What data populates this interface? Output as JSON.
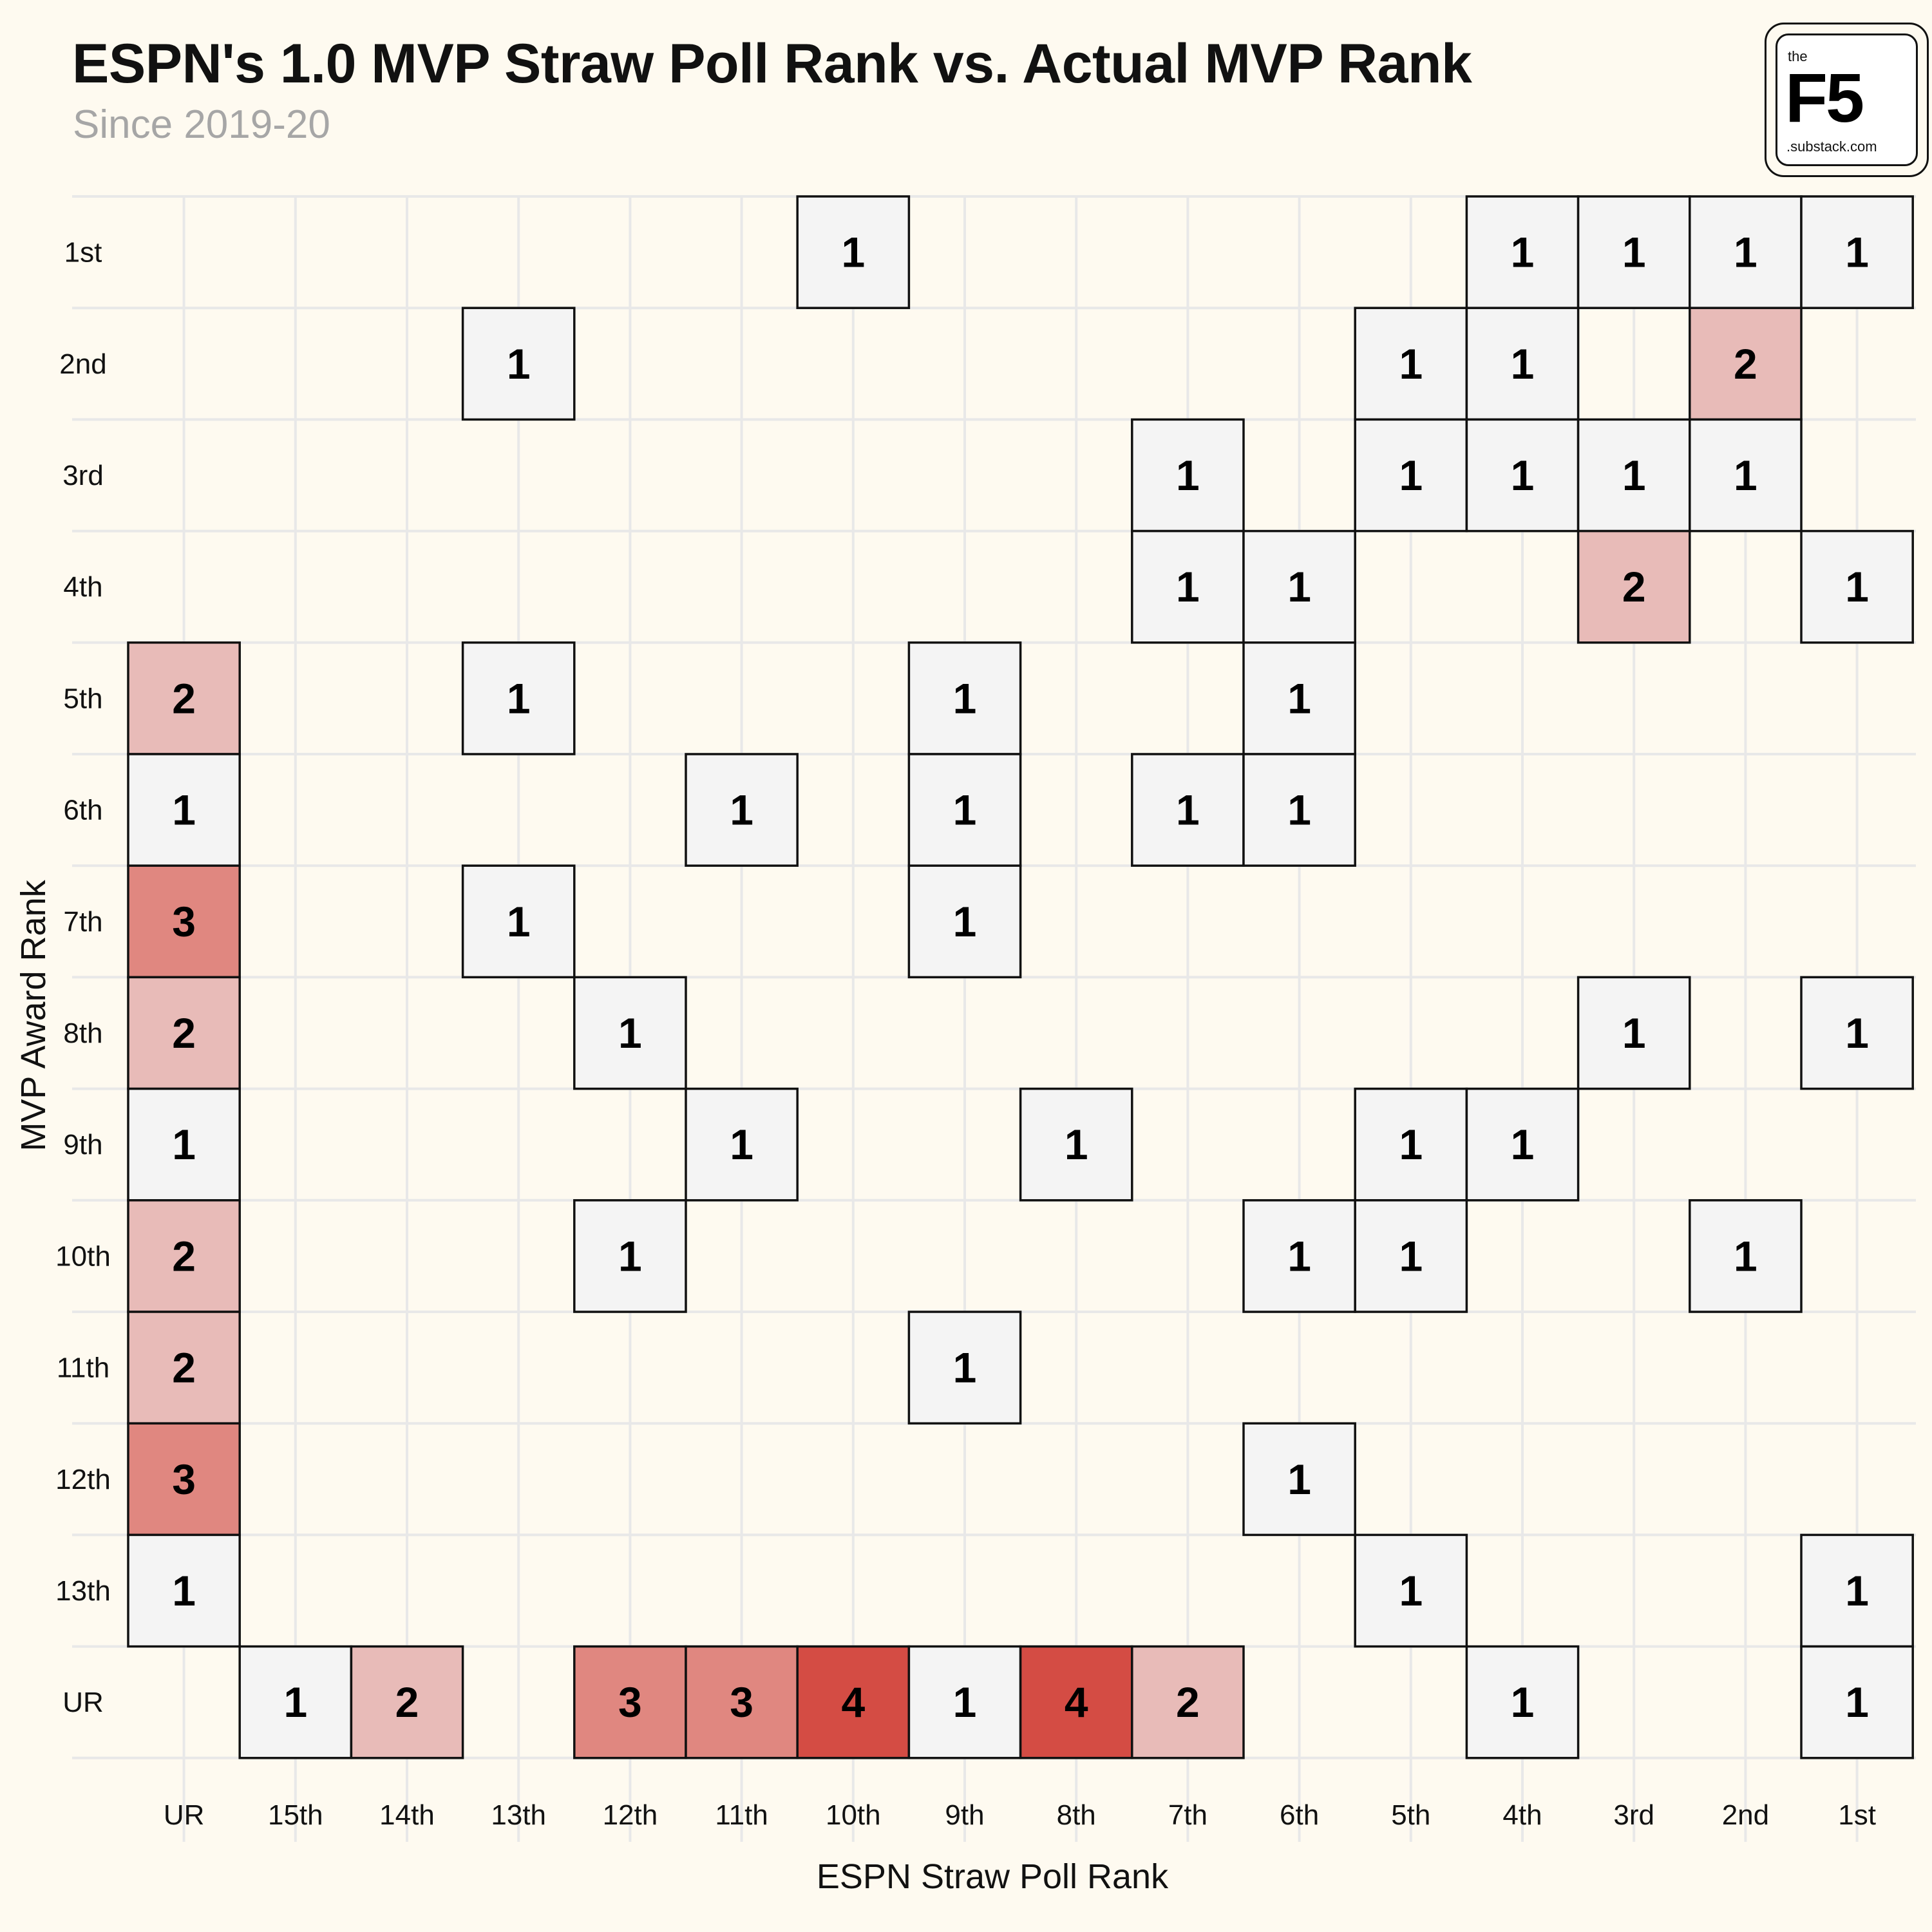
{
  "header": {
    "title": "ESPN's 1.0 MVP Straw Poll Rank vs. Actual MVP Rank",
    "subtitle": "Since 2019-20"
  },
  "logo": {
    "the": "the",
    "mark": "F5",
    "suffix": ".substack.com"
  },
  "colors": {
    "background": "#fefaf0",
    "grid": "#e8e8e8",
    "count_1": "#f4f4f4",
    "count_2": "#e8bbb8",
    "count_3": "#e08780",
    "count_4": "#d44c44",
    "border": "#111111"
  },
  "chart_data": {
    "type": "heatmap",
    "title": "ESPN's 1.0 MVP Straw Poll Rank vs. Actual MVP Rank",
    "subtitle": "Since 2019-20",
    "xlabel": "ESPN Straw Poll Rank",
    "ylabel": "MVP Award Rank",
    "x_categories": [
      "UR",
      "15th",
      "14th",
      "13th",
      "12th",
      "11th",
      "10th",
      "9th",
      "8th",
      "7th",
      "6th",
      "5th",
      "4th",
      "3rd",
      "2nd",
      "1st"
    ],
    "y_categories": [
      "1st",
      "2nd",
      "3rd",
      "4th",
      "5th",
      "6th",
      "7th",
      "8th",
      "9th",
      "10th",
      "11th",
      "12th",
      "13th",
      "UR"
    ],
    "cells": [
      {
        "x": "10th",
        "y": "1st",
        "value": 1
      },
      {
        "x": "4th",
        "y": "1st",
        "value": 1
      },
      {
        "x": "3rd",
        "y": "1st",
        "value": 1
      },
      {
        "x": "2nd",
        "y": "1st",
        "value": 1
      },
      {
        "x": "1st",
        "y": "1st",
        "value": 1
      },
      {
        "x": "13th",
        "y": "2nd",
        "value": 1
      },
      {
        "x": "5th",
        "y": "2nd",
        "value": 1
      },
      {
        "x": "4th",
        "y": "2nd",
        "value": 1
      },
      {
        "x": "2nd",
        "y": "2nd",
        "value": 2
      },
      {
        "x": "7th",
        "y": "3rd",
        "value": 1
      },
      {
        "x": "5th",
        "y": "3rd",
        "value": 1
      },
      {
        "x": "4th",
        "y": "3rd",
        "value": 1
      },
      {
        "x": "3rd",
        "y": "3rd",
        "value": 1
      },
      {
        "x": "2nd",
        "y": "3rd",
        "value": 1
      },
      {
        "x": "7th",
        "y": "4th",
        "value": 1
      },
      {
        "x": "6th",
        "y": "4th",
        "value": 1
      },
      {
        "x": "3rd",
        "y": "4th",
        "value": 2
      },
      {
        "x": "1st",
        "y": "4th",
        "value": 1
      },
      {
        "x": "UR",
        "y": "5th",
        "value": 2
      },
      {
        "x": "13th",
        "y": "5th",
        "value": 1
      },
      {
        "x": "9th",
        "y": "5th",
        "value": 1
      },
      {
        "x": "6th",
        "y": "5th",
        "value": 1
      },
      {
        "x": "UR",
        "y": "6th",
        "value": 1
      },
      {
        "x": "11th",
        "y": "6th",
        "value": 1
      },
      {
        "x": "9th",
        "y": "6th",
        "value": 1
      },
      {
        "x": "7th",
        "y": "6th",
        "value": 1
      },
      {
        "x": "6th",
        "y": "6th",
        "value": 1
      },
      {
        "x": "UR",
        "y": "7th",
        "value": 3
      },
      {
        "x": "13th",
        "y": "7th",
        "value": 1
      },
      {
        "x": "9th",
        "y": "7th",
        "value": 1
      },
      {
        "x": "UR",
        "y": "8th",
        "value": 2
      },
      {
        "x": "12th",
        "y": "8th",
        "value": 1
      },
      {
        "x": "3rd",
        "y": "8th",
        "value": 1
      },
      {
        "x": "1st",
        "y": "8th",
        "value": 1
      },
      {
        "x": "UR",
        "y": "9th",
        "value": 1
      },
      {
        "x": "11th",
        "y": "9th",
        "value": 1
      },
      {
        "x": "8th",
        "y": "9th",
        "value": 1
      },
      {
        "x": "5th",
        "y": "9th",
        "value": 1
      },
      {
        "x": "4th",
        "y": "9th",
        "value": 1
      },
      {
        "x": "UR",
        "y": "10th",
        "value": 2
      },
      {
        "x": "12th",
        "y": "10th",
        "value": 1
      },
      {
        "x": "6th",
        "y": "10th",
        "value": 1
      },
      {
        "x": "5th",
        "y": "10th",
        "value": 1
      },
      {
        "x": "2nd",
        "y": "10th",
        "value": 1
      },
      {
        "x": "UR",
        "y": "11th",
        "value": 2
      },
      {
        "x": "9th",
        "y": "11th",
        "value": 1
      },
      {
        "x": "UR",
        "y": "12th",
        "value": 3
      },
      {
        "x": "6th",
        "y": "12th",
        "value": 1
      },
      {
        "x": "UR",
        "y": "13th",
        "value": 1
      },
      {
        "x": "5th",
        "y": "13th",
        "value": 1
      },
      {
        "x": "1st",
        "y": "13th",
        "value": 1
      },
      {
        "x": "15th",
        "y": "UR",
        "value": 1
      },
      {
        "x": "14th",
        "y": "UR",
        "value": 2
      },
      {
        "x": "12th",
        "y": "UR",
        "value": 3
      },
      {
        "x": "11th",
        "y": "UR",
        "value": 3
      },
      {
        "x": "10th",
        "y": "UR",
        "value": 4
      },
      {
        "x": "9th",
        "y": "UR",
        "value": 1
      },
      {
        "x": "8th",
        "y": "UR",
        "value": 4
      },
      {
        "x": "7th",
        "y": "UR",
        "value": 2
      },
      {
        "x": "4th",
        "y": "UR",
        "value": 1
      },
      {
        "x": "1st",
        "y": "UR",
        "value": 1
      }
    ],
    "value_range": [
      1,
      4
    ],
    "grid": true,
    "legend": "none"
  }
}
